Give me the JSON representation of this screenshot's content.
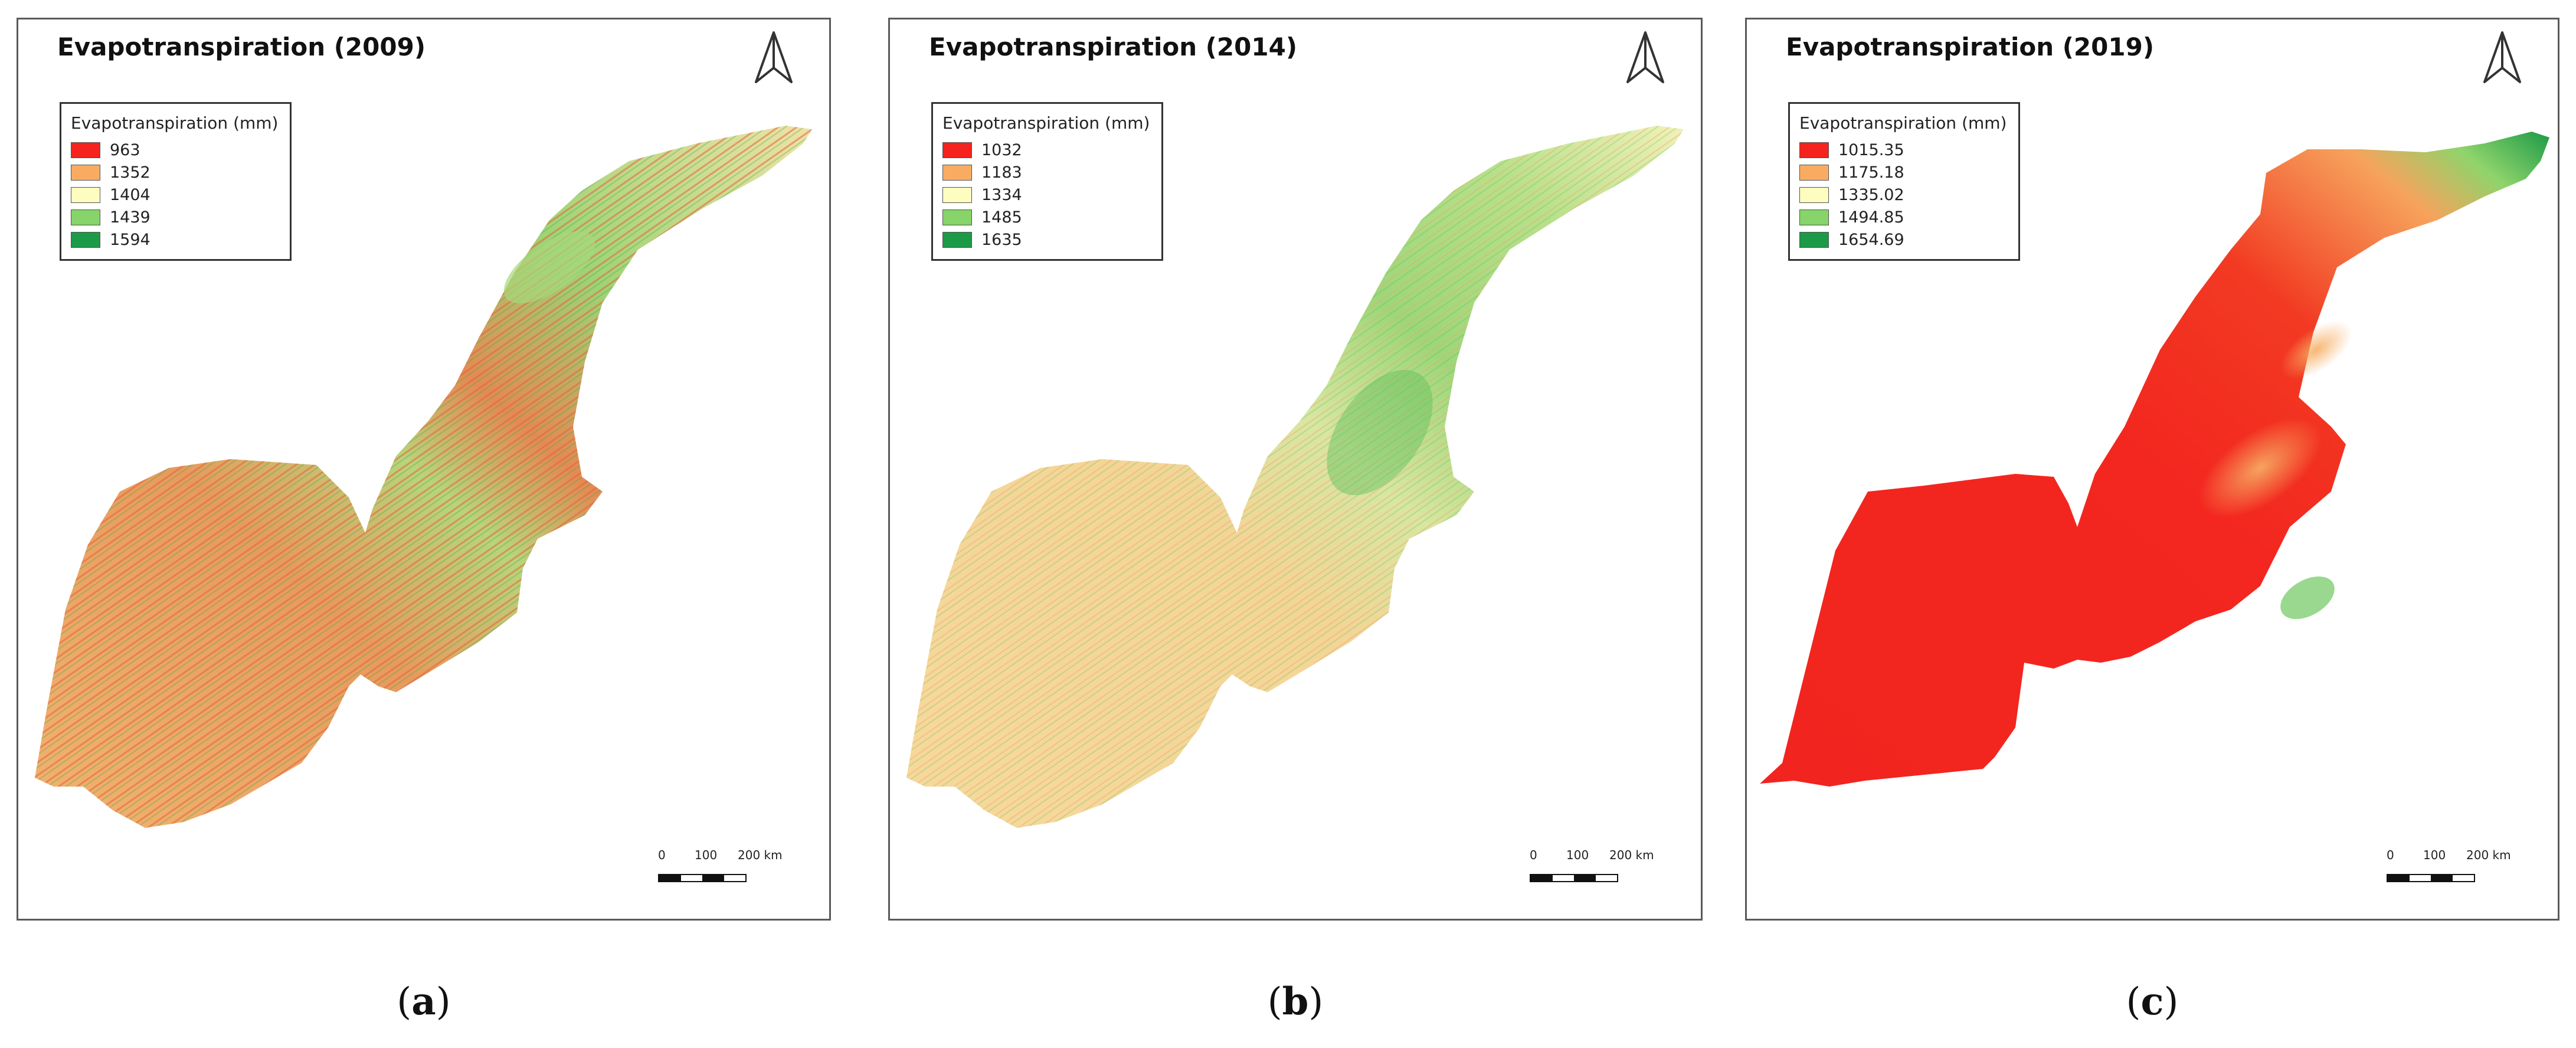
{
  "panels": [
    {
      "title": "Evapotranspiration (2009)",
      "legend_title": "Evapotranspiration (mm)",
      "legend": [
        {
          "label": "963",
          "color": "#f5221e"
        },
        {
          "label": "1352",
          "color": "#f9ab62"
        },
        {
          "label": "1404",
          "color": "#fdfdc0"
        },
        {
          "label": "1439",
          "color": "#86d46a"
        },
        {
          "label": "1594",
          "color": "#1c9a48"
        }
      ],
      "scale": {
        "t0": "0",
        "t1": "100",
        "t2": "200 km"
      },
      "caption_letter": "a"
    },
    {
      "title": "Evapotranspiration (2014)",
      "legend_title": "Evapotranspiration (mm)",
      "legend": [
        {
          "label": "1032",
          "color": "#f5221e"
        },
        {
          "label": "1183",
          "color": "#f9ab62"
        },
        {
          "label": "1334",
          "color": "#fdfdc0"
        },
        {
          "label": "1485",
          "color": "#86d46a"
        },
        {
          "label": "1635",
          "color": "#1c9a48"
        }
      ],
      "scale": {
        "t0": "0",
        "t1": "100",
        "t2": "200 km"
      },
      "caption_letter": "b"
    },
    {
      "title": "Evapotranspiration (2019)",
      "legend_title": "Evapotranspiration (mm)",
      "legend": [
        {
          "label": "1015.35",
          "color": "#f5221e"
        },
        {
          "label": "1175.18",
          "color": "#f9ab62"
        },
        {
          "label": "1335.02",
          "color": "#fdfdc0"
        },
        {
          "label": "1494.85",
          "color": "#86d46a"
        },
        {
          "label": "1654.69",
          "color": "#1c9a48"
        }
      ],
      "scale": {
        "t0": "0",
        "t1": "100",
        "t2": "200 km"
      },
      "caption_letter": "c"
    }
  ],
  "caption_paren_open": "(",
  "caption_paren_close": ")"
}
